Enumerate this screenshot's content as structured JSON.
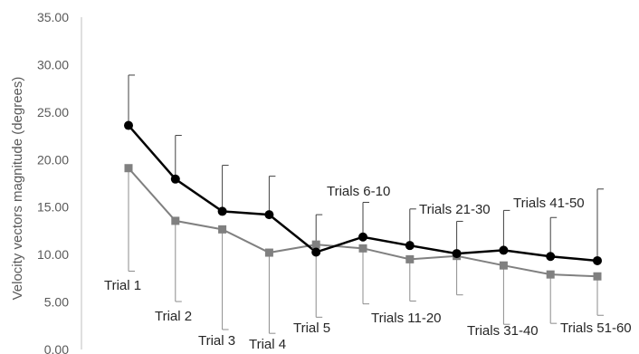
{
  "chart_data": {
    "type": "line",
    "title": "",
    "xlabel": "",
    "ylabel": "Velocity vectors magnitude (degrees)",
    "ylim": [
      0,
      35
    ],
    "yticks": [
      "0.00",
      "5.00",
      "10.00",
      "15.00",
      "20.00",
      "25.00",
      "30.00",
      "35.00"
    ],
    "grid": false,
    "legend": "none",
    "categories": [
      "Trial 1",
      "Trial 2",
      "Trial 3",
      "Trial 4",
      "Trial 5",
      "Trials 6-10",
      "Trials 11-20",
      "Trials 21-30",
      "Trials 31-40",
      "Trials 41-50",
      "Trials 51-60"
    ],
    "series": [
      {
        "marker": "circle",
        "color": "#000000",
        "values": [
          23.6,
          17.95,
          14.55,
          14.2,
          10.25,
          11.85,
          10.95,
          10.1,
          10.45,
          9.8,
          9.35
        ],
        "error_plus": [
          5.3,
          4.6,
          4.85,
          4.05,
          3.95,
          3.65,
          3.85,
          3.4,
          4.2,
          4.1,
          7.55
        ]
      },
      {
        "marker": "square",
        "color": "#808080",
        "values": [
          19.1,
          13.55,
          12.65,
          10.2,
          11.05,
          10.65,
          9.5,
          9.85,
          8.85,
          7.9,
          7.7
        ],
        "error_minus": [
          10.85,
          8.5,
          10.55,
          8.5,
          7.65,
          5.85,
          4.4,
          4.1,
          6.2,
          5.15,
          4.1
        ]
      }
    ]
  }
}
